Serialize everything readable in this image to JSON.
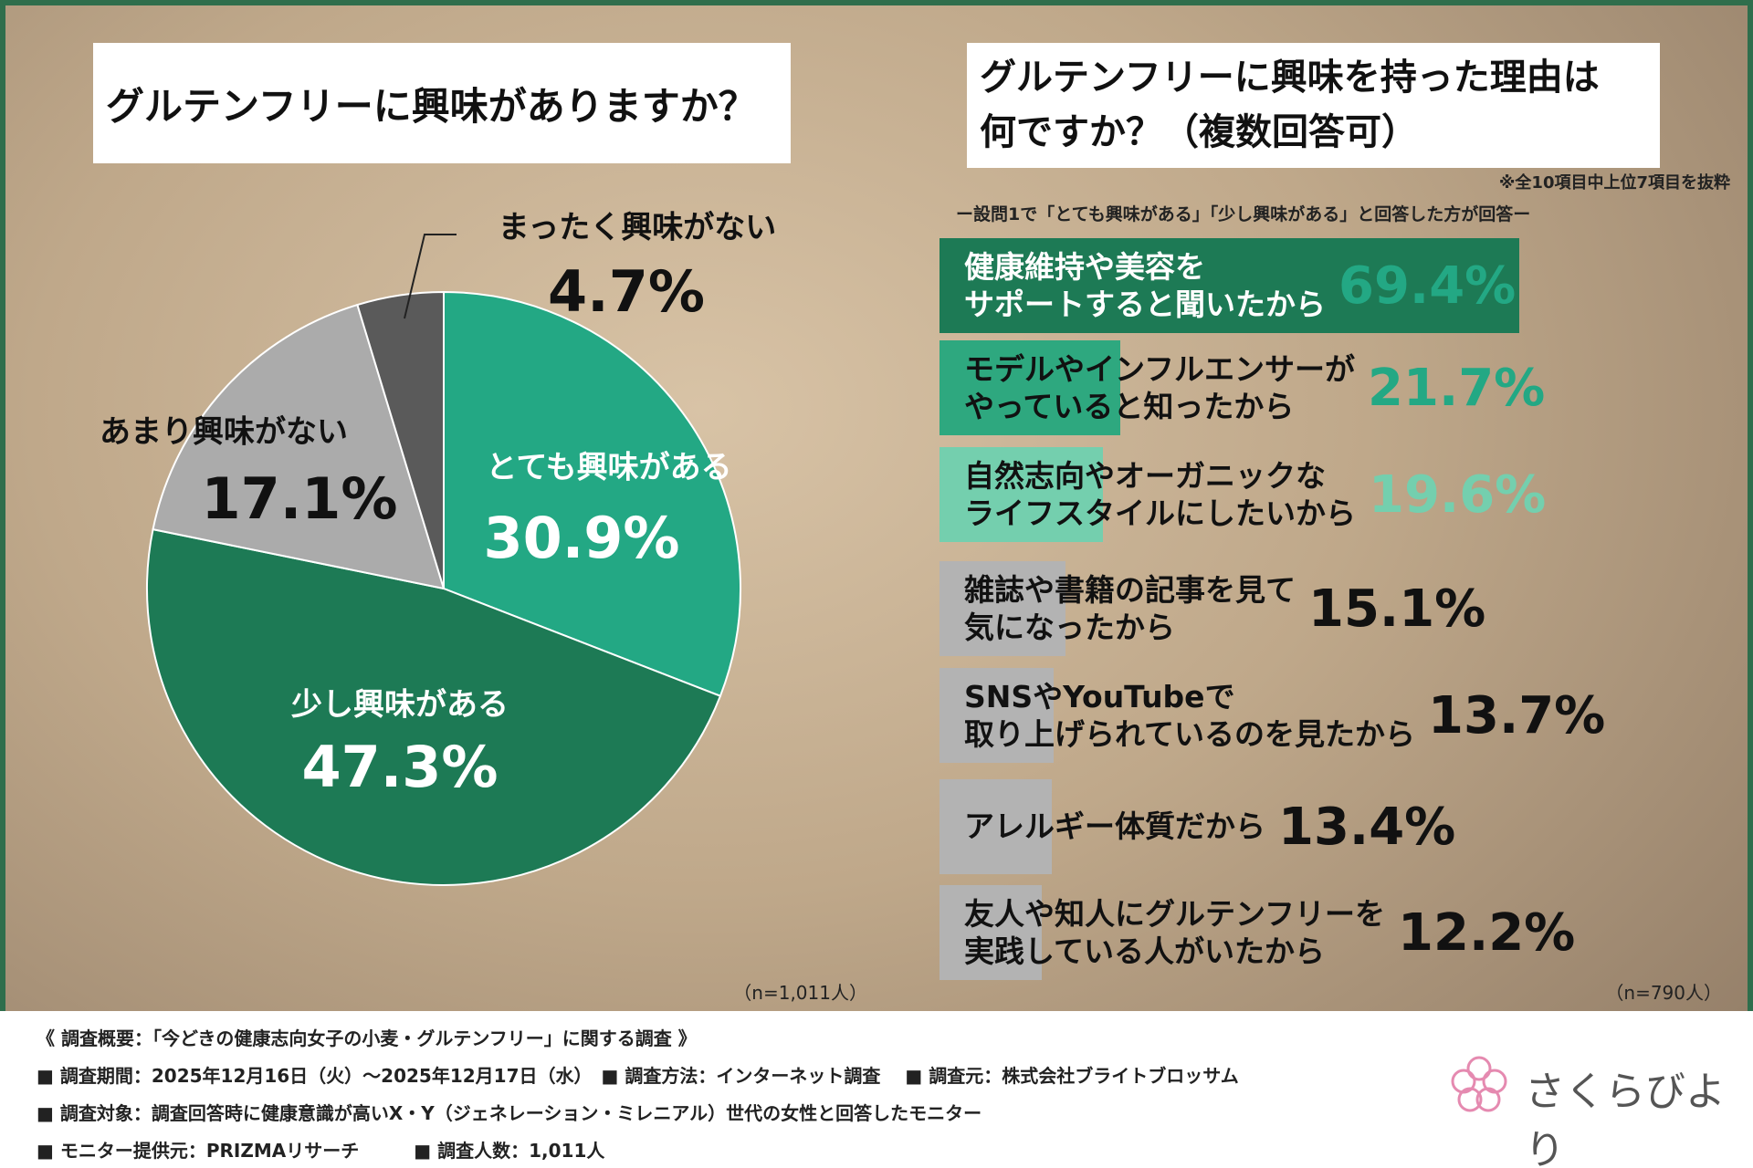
{
  "chart_data": [
    {
      "type": "pie",
      "title": "グルテンフリーに興味がありますか？",
      "categories": [
        "とても興味がある",
        "少し興味がある",
        "あまり興味がない",
        "まったく興味がない"
      ],
      "values": [
        30.9,
        47.3,
        17.1,
        4.7
      ],
      "value_labels": [
        "30.9%",
        "47.3%",
        "17.1%",
        "4.7%"
      ],
      "colors": [
        "#23a884",
        "#1d7a55",
        "#ababab",
        "#5a5a5a"
      ],
      "note": "（n=1,011人）"
    },
    {
      "type": "hbar",
      "title": "グルテンフリーに興味を持った理由は\n何ですか？（複数回答可）",
      "annotation": "※全10項目中上位7項目を抜粋",
      "subtitle": "ー設問1で「とても興味がある」「少し興味がある」と回答した方が回答ー",
      "categories": [
        "健康維持や美容を\nサポートすると聞いたから",
        "モデルやインフルエンサーが\nやっていると知ったから",
        "自然志向やオーガニックな\nライフスタイルにしたいから",
        "雑誌や書籍の記事を見て\n気になったから",
        "SNSやYouTubeで\n取り上げられているのを見たから",
        "アレルギー体質だから",
        "友人や知人にグルテンフリーを\n実践している人がいたから"
      ],
      "values": [
        69.4,
        21.7,
        19.6,
        15.1,
        13.7,
        13.4,
        12.2
      ],
      "value_labels": [
        "69.4%",
        "21.7%",
        "19.6%",
        "15.1%",
        "13.7%",
        "13.4%",
        "12.2%"
      ],
      "colors": [
        "#1d7a55",
        "#2ea87f",
        "#74cfae",
        "#b3b3b3",
        "#b3b3b3",
        "#b3b3b3",
        "#b3b3b3"
      ],
      "label_colors": [
        "#23a884",
        "#23a884",
        "#74cfae",
        "#111111",
        "#111111",
        "#111111",
        "#111111"
      ],
      "xlim": [
        0,
        70
      ],
      "note": "（n=790人）"
    }
  ],
  "footer": {
    "lines": [
      "《 調査概要：「今どきの健康志向女子の小麦・グルテンフリー」に関する調査 》",
      "■ 調査期間：2025年12月16日（火）～2025年12月17日（水）　■ 調査方法：インターネット調査　 ■ 調査元：株式会社ブライトブロッサム",
      "■ 調査対象：調査回答時に健康意識が高いX・Y（ジェネレーション・ミレニアル）世代の女性と回答したモニター",
      "■ モニター提供元：PRIZMAリサーチ　　　■ 調査人数：1,011人"
    ],
    "logo": "さくらびより"
  }
}
